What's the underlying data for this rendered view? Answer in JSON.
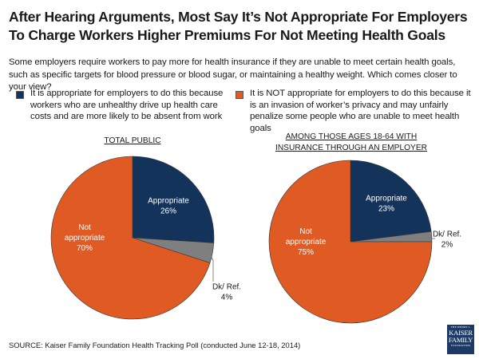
{
  "title": "After Hearing Arguments, Most Say It’s Not Appropriate For Employers To Charge Workers Higher Premiums For Not Meeting Health Goals",
  "question": "Some employers require workers to pay more for health insurance if they are unable to meet certain health goals, such as specific targets for blood pressure or blood sugar, or maintaining a healthy weight. Which comes closer to your view?",
  "legend": [
    {
      "label": "It is appropriate for employers to do this because workers who are unhealthy drive up health care costs and are more likely to be absent from work",
      "color": "#14335a"
    },
    {
      "label": "It is NOT appropriate for employers to do this because it is an invasion of worker’s privacy and may unfairly penalize some people who are unable to meet health goals",
      "color": "#e05a24"
    }
  ],
  "chart_data": [
    {
      "type": "pie",
      "title": "TOTAL PUBLIC",
      "slices": [
        {
          "name": "Appropriate",
          "value": 26,
          "label": "26%",
          "color": "#14335a",
          "text_color": "#ffffff"
        },
        {
          "name": "Dk/ Ref.",
          "value": 4,
          "label": "4%",
          "color": "#7f7f7f",
          "text_color": "#1a1a1a"
        },
        {
          "name": "Not appropriate",
          "value": 70,
          "label": "70%",
          "color": "#e05a24",
          "text_color": "#ffffff"
        }
      ]
    },
    {
      "type": "pie",
      "title": "AMONG THOSE AGES 18-64 WITH INSURANCE THROUGH AN EMPLOYER",
      "slices": [
        {
          "name": "Appropriate",
          "value": 23,
          "label": "23%",
          "color": "#14335a",
          "text_color": "#ffffff"
        },
        {
          "name": "Dk/ Ref.",
          "value": 2,
          "label": "2%",
          "color": "#7f7f7f",
          "text_color": "#1a1a1a"
        },
        {
          "name": "Not appropriate",
          "value": 75,
          "label": "75%",
          "color": "#e05a24",
          "text_color": "#ffffff"
        }
      ]
    }
  ],
  "source": "SOURCE: Kaiser Family Foundation Health Tracking Poll (conducted June 12-18, 2014)",
  "logo": {
    "line1": "THE HENRY J.",
    "line2": "KAISER",
    "line3": "FAMILY",
    "line4": "FOUNDATION"
  }
}
